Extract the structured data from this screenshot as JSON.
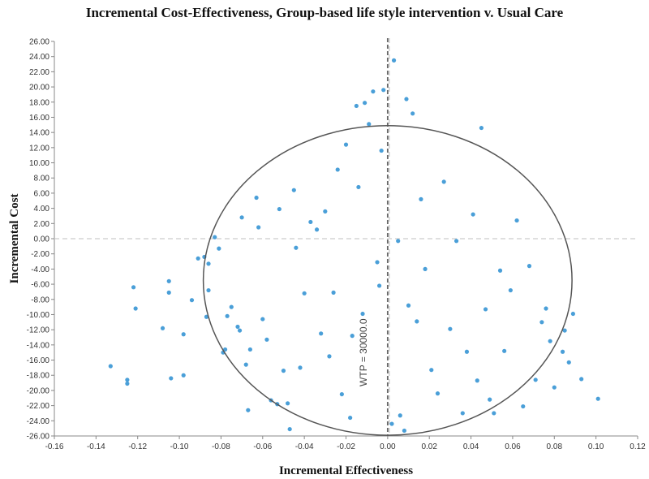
{
  "chart_data": {
    "type": "scatter",
    "title": "Incremental Cost-Effectiveness, Group-based life style intervention v. Usual Care",
    "xlabel": "Incremental Effectiveness",
    "ylabel": "Incremental Cost",
    "xlim": [
      -0.16,
      0.12
    ],
    "ylim": [
      -26,
      26
    ],
    "x_ticks": [
      "-0.16",
      "-0.14",
      "-0.12",
      "-0.10",
      "-0.08",
      "-0.06",
      "-0.04",
      "-0.02",
      "0.00",
      "0.02",
      "0.04",
      "0.06",
      "0.08",
      "0.10",
      "0.12"
    ],
    "y_ticks": [
      "26.00",
      "24.00",
      "22.00",
      "20.00",
      "18.00",
      "16.00",
      "14.00",
      "12.00",
      "10.00",
      "8.00",
      "6.00",
      "4.00",
      "2.00",
      "0.00",
      "-2.00",
      "-4.00",
      "-6.00",
      "-8.00",
      "-10.00",
      "-12.00",
      "-14.00",
      "-16.00",
      "-18.00",
      "-20.00",
      "-22.00",
      "-24.00",
      "-26.00"
    ],
    "wtp_label": "WTP = 30000.0",
    "ellipse": {
      "cx": 0.0,
      "cy": -5.5,
      "rx": 0.0885,
      "ry": 20.4
    },
    "grid": false,
    "reference_lines": {
      "x": 0,
      "y": 0
    },
    "colors": {
      "points": "#4a9fd8",
      "ellipse": "#555555",
      "wtp_line": "#666666",
      "zero_line": "#cccccc"
    },
    "points": [
      [
        -0.133,
        -16.8
      ],
      [
        -0.125,
        -18.6
      ],
      [
        -0.125,
        -19.1
      ],
      [
        -0.122,
        -6.4
      ],
      [
        -0.121,
        -9.2
      ],
      [
        -0.108,
        -11.8
      ],
      [
        -0.105,
        -5.6
      ],
      [
        -0.105,
        -7.1
      ],
      [
        -0.104,
        -18.4
      ],
      [
        -0.098,
        -12.6
      ],
      [
        -0.098,
        -18.0
      ],
      [
        -0.094,
        -8.1
      ],
      [
        -0.091,
        -2.6
      ],
      [
        -0.088,
        -2.4
      ],
      [
        -0.087,
        -10.3
      ],
      [
        -0.086,
        -3.3
      ],
      [
        -0.086,
        -6.8
      ],
      [
        -0.083,
        0.2
      ],
      [
        -0.081,
        -1.3
      ],
      [
        -0.079,
        -15.0
      ],
      [
        -0.078,
        -14.6
      ],
      [
        -0.077,
        -10.2
      ],
      [
        -0.075,
        -9.0
      ],
      [
        -0.072,
        -11.6
      ],
      [
        -0.071,
        -12.1
      ],
      [
        -0.07,
        2.8
      ],
      [
        -0.068,
        -16.6
      ],
      [
        -0.067,
        -22.6
      ],
      [
        -0.066,
        -14.6
      ],
      [
        -0.063,
        5.4
      ],
      [
        -0.062,
        1.5
      ],
      [
        -0.06,
        -10.6
      ],
      [
        -0.058,
        -13.3
      ],
      [
        -0.056,
        -21.3
      ],
      [
        -0.053,
        -21.8
      ],
      [
        -0.052,
        3.9
      ],
      [
        -0.05,
        -17.4
      ],
      [
        -0.048,
        -21.7
      ],
      [
        -0.047,
        -25.1
      ],
      [
        -0.045,
        6.4
      ],
      [
        -0.044,
        -1.2
      ],
      [
        -0.042,
        -17.0
      ],
      [
        -0.04,
        -7.2
      ],
      [
        -0.037,
        2.2
      ],
      [
        -0.034,
        1.2
      ],
      [
        -0.032,
        -12.5
      ],
      [
        -0.03,
        3.6
      ],
      [
        -0.028,
        -15.5
      ],
      [
        -0.026,
        -7.1
      ],
      [
        -0.024,
        9.1
      ],
      [
        -0.022,
        -20.5
      ],
      [
        -0.02,
        12.4
      ],
      [
        -0.018,
        -23.6
      ],
      [
        -0.017,
        -12.8
      ],
      [
        -0.015,
        17.5
      ],
      [
        -0.014,
        6.8
      ],
      [
        -0.012,
        -9.9
      ],
      [
        -0.011,
        17.9
      ],
      [
        -0.009,
        15.1
      ],
      [
        -0.007,
        19.4
      ],
      [
        -0.005,
        -3.1
      ],
      [
        -0.004,
        -6.2
      ],
      [
        -0.003,
        11.6
      ],
      [
        -0.002,
        19.6
      ],
      [
        0.002,
        -24.4
      ],
      [
        0.003,
        23.5
      ],
      [
        0.005,
        -0.3
      ],
      [
        0.006,
        -23.3
      ],
      [
        0.008,
        -25.3
      ],
      [
        0.009,
        18.4
      ],
      [
        0.01,
        -8.8
      ],
      [
        0.012,
        16.5
      ],
      [
        0.014,
        -10.9
      ],
      [
        0.016,
        5.2
      ],
      [
        0.018,
        -4.0
      ],
      [
        0.021,
        -17.3
      ],
      [
        0.024,
        -20.4
      ],
      [
        0.027,
        7.5
      ],
      [
        0.03,
        -11.9
      ],
      [
        0.033,
        -0.3
      ],
      [
        0.036,
        -23.0
      ],
      [
        0.038,
        -14.9
      ],
      [
        0.041,
        3.2
      ],
      [
        0.043,
        -18.7
      ],
      [
        0.045,
        14.6
      ],
      [
        0.047,
        -9.3
      ],
      [
        0.049,
        -21.2
      ],
      [
        0.051,
        -23.0
      ],
      [
        0.054,
        -4.2
      ],
      [
        0.056,
        -14.8
      ],
      [
        0.059,
        -6.8
      ],
      [
        0.062,
        2.4
      ],
      [
        0.065,
        -22.1
      ],
      [
        0.068,
        -3.6
      ],
      [
        0.071,
        -18.6
      ],
      [
        0.074,
        -11.0
      ],
      [
        0.076,
        -9.2
      ],
      [
        0.078,
        -13.5
      ],
      [
        0.08,
        -19.6
      ],
      [
        0.084,
        -14.9
      ],
      [
        0.085,
        -12.1
      ],
      [
        0.087,
        -16.3
      ],
      [
        0.089,
        -9.9
      ],
      [
        0.093,
        -18.5
      ],
      [
        0.101,
        -21.1
      ]
    ]
  }
}
